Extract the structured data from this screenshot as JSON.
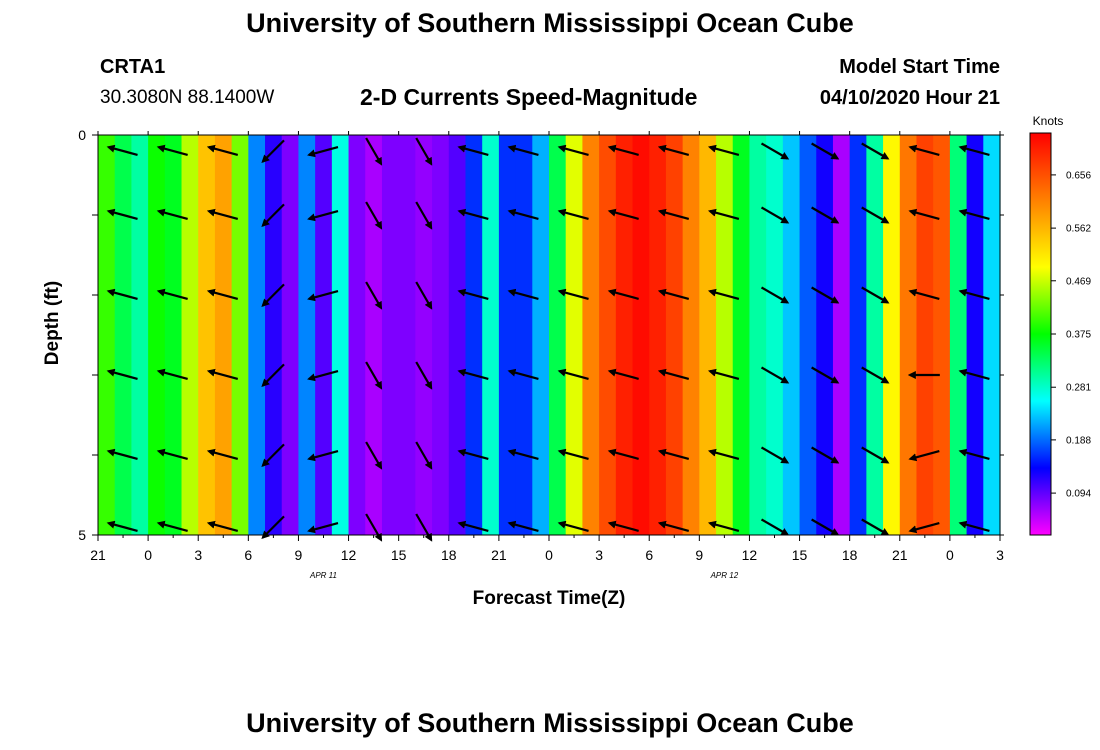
{
  "header": {
    "title": "University of Southern Mississippi Ocean Cube",
    "station": "CRTA1",
    "coords": "30.3080N 88.1400W",
    "subtitle": "2-D Currents Speed-Magnitude",
    "model_label": "Model Start Time",
    "model_time": "04/10/2020 Hour 21"
  },
  "footer": {
    "title": "University of Southern Mississippi Ocean Cube"
  },
  "chart_data": {
    "type": "heatmap",
    "title": "2-D Currents Speed-Magnitude",
    "xlabel": "Forecast Time(Z)",
    "ylabel": "Depth (ft)",
    "colorbar_label": "Knots",
    "x_tick_labels": [
      "21",
      "0",
      "3",
      "6",
      "9",
      "12",
      "15",
      "18",
      "21",
      "0",
      "3",
      "6",
      "9",
      "12",
      "15",
      "18",
      "21",
      "0",
      "3"
    ],
    "x_date_labels": [
      {
        "at_hour": 13.5,
        "text": "APR 11"
      },
      {
        "at_hour": 37.5,
        "text": "APR 12"
      }
    ],
    "y_tick_labels": [
      "0",
      "5"
    ],
    "ylim": [
      0,
      5
    ],
    "x_range_hours_from_start": [
      0,
      54
    ],
    "colorbar_ticks": [
      0.094,
      0.188,
      0.281,
      0.375,
      0.469,
      0.562,
      0.656
    ],
    "colorbar_range": [
      0.02,
      0.73
    ],
    "colors": [
      "#ff00ff",
      "#8000ff",
      "#0000ff",
      "#0080ff",
      "#00ffff",
      "#00ff80",
      "#00ff00",
      "#80ff00",
      "#ffff00",
      "#ffc000",
      "#ff8000",
      "#ff4000",
      "#ff0000"
    ],
    "speed_knots_by_hour": [
      0.4,
      0.34,
      0.3,
      0.38,
      0.36,
      0.46,
      0.55,
      0.58,
      0.43,
      0.2,
      0.12,
      0.08,
      0.2,
      0.1,
      0.27,
      0.08,
      0.06,
      0.08,
      0.08,
      0.07,
      0.08,
      0.1,
      0.16,
      0.28,
      0.16,
      0.16,
      0.22,
      0.34,
      0.48,
      0.61,
      0.66,
      0.7,
      0.72,
      0.7,
      0.67,
      0.61,
      0.56,
      0.46,
      0.36,
      0.3,
      0.28,
      0.23,
      0.18,
      0.13,
      0.06,
      0.16,
      0.3,
      0.5,
      0.62,
      0.67,
      0.65,
      0.32,
      0.13,
      0.24,
      0.36
    ],
    "vector_rows_depth_ft": [
      0.2,
      1.0,
      2.0,
      3.0,
      4.0,
      4.9
    ],
    "vector_cols_hours": [
      1.5,
      4.5,
      7.5,
      10.5,
      13.5,
      16.5,
      19.5,
      22.5,
      25.5,
      28.5,
      31.5,
      34.5,
      37.5,
      40.5,
      43.5,
      46.5,
      49.5,
      52.5
    ],
    "vector_directions_deg": [
      [
        165,
        165,
        165,
        225,
        195,
        300,
        300,
        165,
        165,
        165,
        165,
        165,
        165,
        330,
        330,
        330,
        165,
        165
      ],
      [
        165,
        165,
        165,
        225,
        195,
        300,
        300,
        165,
        165,
        165,
        165,
        165,
        165,
        330,
        330,
        330,
        165,
        165
      ],
      [
        165,
        165,
        165,
        225,
        195,
        300,
        300,
        165,
        165,
        165,
        165,
        165,
        165,
        330,
        330,
        330,
        165,
        165
      ],
      [
        165,
        165,
        165,
        225,
        195,
        300,
        300,
        165,
        165,
        165,
        165,
        165,
        165,
        330,
        330,
        330,
        180,
        165
      ],
      [
        165,
        165,
        165,
        225,
        195,
        300,
        300,
        165,
        165,
        165,
        165,
        165,
        165,
        330,
        330,
        330,
        195,
        165
      ],
      [
        165,
        165,
        165,
        225,
        195,
        300,
        300,
        165,
        165,
        165,
        165,
        165,
        165,
        330,
        330,
        330,
        195,
        165
      ]
    ]
  }
}
